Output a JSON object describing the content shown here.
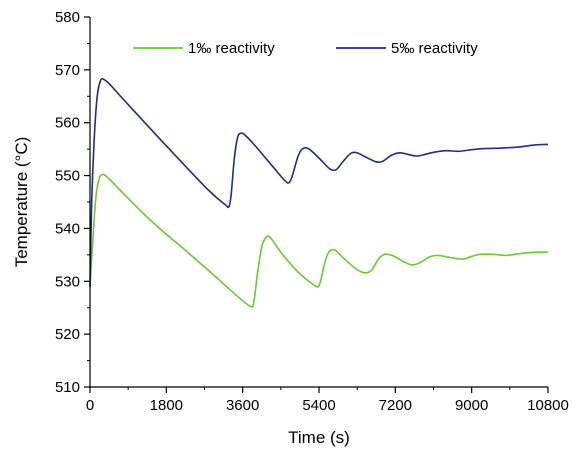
{
  "chart_data": {
    "type": "line",
    "xlabel": "Time (s)",
    "ylabel": "Temperature (°C)",
    "xlim": [
      0,
      10800
    ],
    "ylim": [
      510,
      580
    ],
    "xticks": [
      0,
      1800,
      3600,
      5400,
      7200,
      9000,
      10800
    ],
    "yticks": [
      510,
      520,
      530,
      540,
      550,
      560,
      570,
      580
    ],
    "grid": false,
    "legend_position": "top",
    "series": [
      {
        "name": "1‰ reactivity",
        "color": "#66cc33",
        "points": [
          [
            0,
            529
          ],
          [
            60,
            537
          ],
          [
            140,
            546
          ],
          [
            220,
            549.5
          ],
          [
            300,
            550.2
          ],
          [
            420,
            549.6
          ],
          [
            800,
            546.5
          ],
          [
            1500,
            541
          ],
          [
            2200,
            536.2
          ],
          [
            2900,
            531.3
          ],
          [
            3500,
            527
          ],
          [
            3800,
            525.2
          ],
          [
            3870,
            526.5
          ],
          [
            3950,
            531.5
          ],
          [
            4050,
            536.5
          ],
          [
            4150,
            538.3
          ],
          [
            4250,
            538.3
          ],
          [
            4500,
            535.5
          ],
          [
            4900,
            531.8
          ],
          [
            5300,
            529.2
          ],
          [
            5400,
            529.2
          ],
          [
            5480,
            531.5
          ],
          [
            5560,
            534.2
          ],
          [
            5650,
            535.7
          ],
          [
            5780,
            535.9
          ],
          [
            6000,
            534.2
          ],
          [
            6300,
            532.2
          ],
          [
            6500,
            531.6
          ],
          [
            6650,
            532.2
          ],
          [
            6800,
            534.2
          ],
          [
            6950,
            535.1
          ],
          [
            7150,
            534.8
          ],
          [
            7400,
            533.7
          ],
          [
            7600,
            533.1
          ],
          [
            7800,
            533.6
          ],
          [
            8000,
            534.6
          ],
          [
            8200,
            534.9
          ],
          [
            8500,
            534.5
          ],
          [
            8800,
            534.2
          ],
          [
            9000,
            534.7
          ],
          [
            9200,
            535.1
          ],
          [
            9500,
            535.1
          ],
          [
            9800,
            534.9
          ],
          [
            10100,
            535.2
          ],
          [
            10500,
            535.5
          ],
          [
            10800,
            535.5
          ]
        ]
      },
      {
        "name": "5‰ reactivity",
        "color": "#1f2d8a",
        "points": [
          [
            0,
            529
          ],
          [
            40,
            545
          ],
          [
            100,
            557
          ],
          [
            170,
            565
          ],
          [
            250,
            568
          ],
          [
            320,
            568.2
          ],
          [
            450,
            567.4
          ],
          [
            800,
            564.3
          ],
          [
            1500,
            558.2
          ],
          [
            2200,
            552.2
          ],
          [
            2800,
            547.2
          ],
          [
            3200,
            544.4
          ],
          [
            3280,
            544.2
          ],
          [
            3330,
            546.5
          ],
          [
            3400,
            553
          ],
          [
            3480,
            557.2
          ],
          [
            3560,
            558
          ],
          [
            3650,
            557.7
          ],
          [
            3900,
            555.6
          ],
          [
            4300,
            551.8
          ],
          [
            4600,
            549
          ],
          [
            4700,
            548.7
          ],
          [
            4780,
            550.2
          ],
          [
            4900,
            553.5
          ],
          [
            5000,
            555
          ],
          [
            5150,
            555.1
          ],
          [
            5400,
            553.3
          ],
          [
            5650,
            551.3
          ],
          [
            5800,
            551.1
          ],
          [
            5950,
            552.5
          ],
          [
            6150,
            554.2
          ],
          [
            6300,
            554.3
          ],
          [
            6500,
            553.5
          ],
          [
            6750,
            552.6
          ],
          [
            6900,
            552.7
          ],
          [
            7100,
            553.8
          ],
          [
            7300,
            554.3
          ],
          [
            7500,
            554
          ],
          [
            7700,
            553.7
          ],
          [
            7900,
            554
          ],
          [
            8100,
            554.4
          ],
          [
            8400,
            554.7
          ],
          [
            8700,
            554.6
          ],
          [
            9000,
            554.9
          ],
          [
            9300,
            555.1
          ],
          [
            9700,
            555.2
          ],
          [
            10100,
            555.4
          ],
          [
            10500,
            555.8
          ],
          [
            10800,
            555.9
          ]
        ]
      }
    ]
  }
}
